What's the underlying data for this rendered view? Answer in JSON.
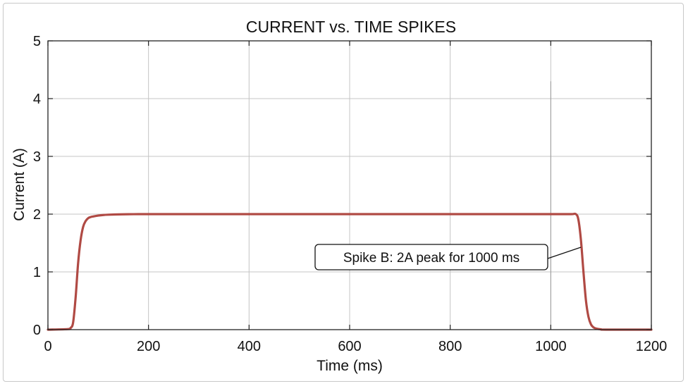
{
  "chart_data": {
    "type": "line",
    "title": "CURRENT vs. TIME SPIKES",
    "xlabel": "Time (ms)",
    "ylabel": "Current (A)",
    "xlim": [
      0,
      1200
    ],
    "ylim": [
      0,
      5
    ],
    "xticks": [
      0,
      200,
      400,
      600,
      800,
      1000,
      1200
    ],
    "yticks": [
      0,
      1,
      2,
      3,
      4,
      5
    ],
    "grid": true,
    "legend": "none",
    "series": [
      {
        "color": "#b04a44",
        "x": [
          0,
          40,
          45,
          50,
          55,
          60,
          65,
          70,
          75,
          80,
          85,
          90,
          100,
          110,
          120,
          140,
          160,
          180,
          200,
          300,
          400,
          600,
          800,
          1000,
          1040,
          1050,
          1055,
          1060,
          1065,
          1070,
          1075,
          1080,
          1085,
          1090,
          1100,
          1110,
          1200
        ],
        "y": [
          0,
          0.01,
          0.03,
          0.12,
          0.55,
          1.15,
          1.55,
          1.78,
          1.88,
          1.93,
          1.95,
          1.96,
          1.975,
          1.985,
          1.99,
          1.995,
          1.998,
          2.0,
          2.0,
          2.0,
          2.0,
          2.0,
          2.0,
          2.0,
          2.0,
          2.0,
          1.9,
          1.55,
          1.0,
          0.5,
          0.22,
          0.09,
          0.04,
          0.02,
          0.005,
          0.0,
          0.0
        ]
      }
    ],
    "annotations": [
      {
        "text": "Spike B: 2A peak for 1000 ms",
        "x": 1060,
        "y": 1.5
      }
    ],
    "reference_lines": [
      {
        "x": 1000,
        "y_from": 0,
        "y_to": 4.3
      }
    ]
  }
}
